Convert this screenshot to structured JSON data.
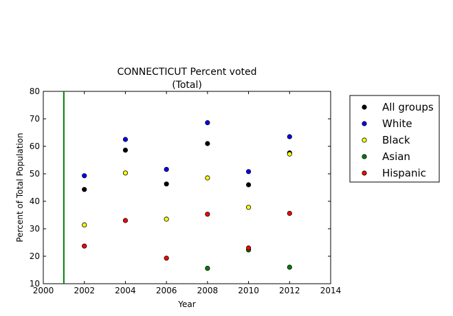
{
  "chart_data": {
    "type": "scatter",
    "title": "CONNECTICUT Percent voted",
    "subtitle": "(Total)",
    "xlabel": "Year",
    "ylabel": "Percent of Total Population",
    "xlim": [
      2000,
      2014
    ],
    "ylim": [
      10,
      80
    ],
    "xticks": [
      "2000",
      "2002",
      "2004",
      "2006",
      "2008",
      "2010",
      "2012",
      "2014"
    ],
    "yticks": [
      "10",
      "20",
      "30",
      "40",
      "50",
      "60",
      "70",
      "80"
    ],
    "grid": false,
    "legend_position": "outside-right",
    "vline": {
      "x": 2001,
      "color": "#007f00"
    },
    "series": [
      {
        "name": "All groups",
        "color": "#000000",
        "points": [
          [
            2002,
            44.3
          ],
          [
            2004,
            58.6
          ],
          [
            2006,
            46.3
          ],
          [
            2008,
            61.0
          ],
          [
            2010,
            46.0
          ],
          [
            2012,
            57.6
          ]
        ]
      },
      {
        "name": "White",
        "color": "#0000ff",
        "points": [
          [
            2002,
            49.3
          ],
          [
            2004,
            62.5
          ],
          [
            2006,
            51.6
          ],
          [
            2008,
            68.6
          ],
          [
            2010,
            50.8
          ],
          [
            2012,
            63.5
          ]
        ]
      },
      {
        "name": "Black",
        "color": "#ffff00",
        "points": [
          [
            2002,
            31.4
          ],
          [
            2004,
            50.3
          ],
          [
            2006,
            33.5
          ],
          [
            2008,
            48.5
          ],
          [
            2010,
            37.8
          ],
          [
            2012,
            57.2
          ]
        ]
      },
      {
        "name": "Asian",
        "color": "#007f00",
        "points": [
          [
            2008,
            15.6
          ],
          [
            2010,
            22.3
          ],
          [
            2012,
            16.0
          ]
        ]
      },
      {
        "name": "Hispanic",
        "color": "#ff0000",
        "points": [
          [
            2002,
            23.7
          ],
          [
            2004,
            33.0
          ],
          [
            2006,
            19.3
          ],
          [
            2008,
            35.3
          ],
          [
            2010,
            23.0
          ],
          [
            2012,
            35.6
          ]
        ]
      }
    ]
  }
}
